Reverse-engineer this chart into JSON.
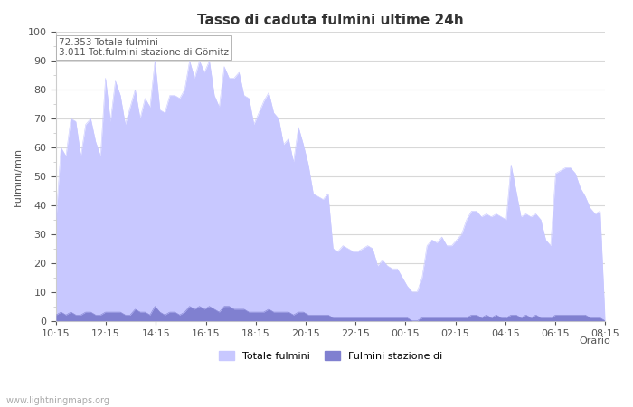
{
  "title": "Tasso di caduta fulmini ultime 24h",
  "xlabel": "Orario",
  "ylabel": "Fulmini/min",
  "ylim": [
    0,
    100
  ],
  "annotation_line1": "72.353 Totale fulmini",
  "annotation_line2": "3.011 Tot.fulmini stazione di Gömitz",
  "xtick_labels": [
    "10:15",
    "12:15",
    "14:15",
    "16:15",
    "18:15",
    "20:15",
    "22:15",
    "00:15",
    "02:15",
    "04:15",
    "06:15",
    "08:15"
  ],
  "ytick_labels": [
    "0",
    "10",
    "20",
    "30",
    "40",
    "50",
    "60",
    "70",
    "80",
    "90",
    "100"
  ],
  "fill_color_total": "#c8c8ff",
  "fill_color_station": "#8080d0",
  "legend_label_total": "Totale fulmini",
  "legend_label_station": "Fulmini stazione di",
  "watermark": "www.lightningmaps.org",
  "total_values": [
    35,
    60,
    57,
    70,
    69,
    57,
    68,
    70,
    62,
    57,
    84,
    69,
    83,
    78,
    68,
    74,
    80,
    70,
    77,
    74,
    90,
    73,
    72,
    78,
    78,
    77,
    80,
    90,
    84,
    90,
    86,
    90,
    78,
    74,
    88,
    84,
    84,
    86,
    78,
    77,
    68,
    72,
    76,
    79,
    72,
    70,
    61,
    63,
    55,
    67,
    61,
    54,
    44,
    43,
    42,
    44,
    25,
    24,
    26,
    25,
    24,
    24,
    25,
    26,
    25,
    19,
    21,
    19,
    18,
    18,
    15,
    12,
    10,
    10,
    15,
    26,
    28,
    27,
    29,
    26,
    26,
    28,
    30,
    35,
    38,
    38,
    36,
    37,
    36,
    37,
    36,
    35,
    54,
    45,
    36,
    37,
    36,
    37,
    35,
    28,
    26,
    51,
    52,
    53,
    53,
    51,
    46,
    43,
    39,
    37,
    38,
    0
  ],
  "station_values": [
    2,
    3,
    2,
    3,
    2,
    2,
    3,
    3,
    2,
    2,
    3,
    3,
    3,
    3,
    2,
    2,
    4,
    3,
    3,
    2,
    5,
    3,
    2,
    3,
    3,
    2,
    3,
    5,
    4,
    5,
    4,
    5,
    4,
    3,
    5,
    5,
    4,
    4,
    4,
    3,
    3,
    3,
    3,
    4,
    3,
    3,
    3,
    3,
    2,
    3,
    3,
    2,
    2,
    2,
    2,
    2,
    1,
    1,
    1,
    1,
    1,
    1,
    1,
    1,
    1,
    1,
    1,
    1,
    1,
    1,
    1,
    1,
    0,
    0,
    1,
    1,
    1,
    1,
    1,
    1,
    1,
    1,
    1,
    1,
    2,
    2,
    1,
    2,
    1,
    2,
    1,
    1,
    2,
    2,
    1,
    2,
    1,
    2,
    1,
    1,
    1,
    2,
    2,
    2,
    2,
    2,
    2,
    2,
    1,
    1,
    1,
    0
  ],
  "bg_color": "#ffffff",
  "spine_color": "#cccccc",
  "grid_color": "#d8d8d8",
  "tick_color": "#555555",
  "title_fontsize": 11,
  "axis_label_fontsize": 8,
  "tick_fontsize": 8,
  "annotation_fontsize": 7.5,
  "legend_fontsize": 8,
  "watermark_fontsize": 7
}
